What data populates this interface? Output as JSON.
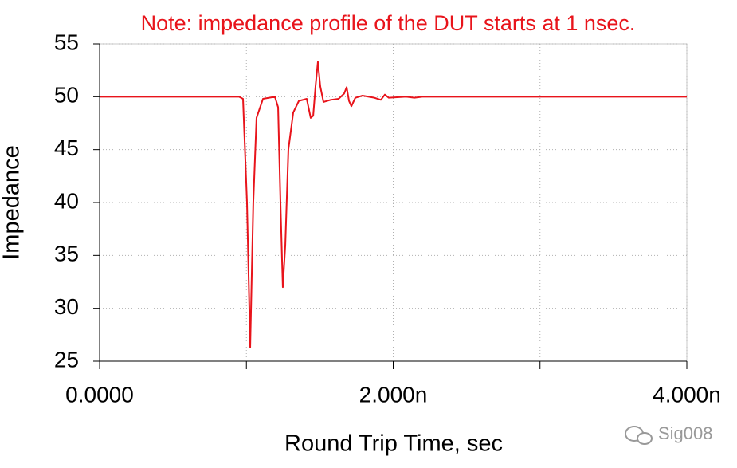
{
  "chart_data": {
    "type": "line",
    "title": "Note: impedance profile of the DUT starts at 1 nsec.",
    "xlabel": "Round Trip Time, sec",
    "ylabel": "Impedance",
    "watermark": "Sig008",
    "x": [
      0,
      9.5e-10,
      9.77e-10,
      1.004e-09,
      1.026e-09,
      1.047e-09,
      1.069e-09,
      1.113e-09,
      1.194e-09,
      1.216e-09,
      1.232e-09,
      1.248e-09,
      1.265e-09,
      1.286e-09,
      1.319e-09,
      1.357e-09,
      1.411e-09,
      1.438e-09,
      1.455e-09,
      1.471e-09,
      1.487e-09,
      1.503e-09,
      1.525e-09,
      1.574e-09,
      1.628e-09,
      1.666e-09,
      1.683e-09,
      1.699e-09,
      1.715e-09,
      1.742e-09,
      1.791e-09,
      1.872e-09,
      1.916e-09,
      1.943e-09,
      1.97e-09,
      2.09e-09,
      2.144e-09,
      2.198e-09,
      2.578e-09,
      4e-09
    ],
    "series": [
      {
        "name": "Impedance",
        "color": "#e8141b",
        "values": [
          50,
          50,
          49.8,
          40,
          26.3,
          40,
          48,
          49.8,
          50,
          49,
          40,
          32,
          36,
          45,
          48.5,
          49.6,
          49.8,
          48,
          48.2,
          51,
          53.3,
          51,
          49.5,
          49.7,
          49.8,
          50.3,
          50.9,
          49.6,
          49.1,
          49.9,
          50.1,
          49.9,
          49.7,
          50.2,
          49.9,
          50,
          49.9,
          50,
          50,
          50
        ]
      }
    ],
    "xlim": [
      0,
      4e-09
    ],
    "xticks": [
      {
        "value": 0,
        "label": "0.0000"
      },
      {
        "value": 2e-09,
        "label": "2.000n"
      },
      {
        "value": 4e-09,
        "label": "4.000n"
      }
    ],
    "xminorticks": [
      1e-09,
      3e-09
    ],
    "ylim": [
      25,
      55
    ],
    "yticks": [
      25,
      30,
      35,
      40,
      45,
      50,
      55
    ],
    "grid": true
  }
}
